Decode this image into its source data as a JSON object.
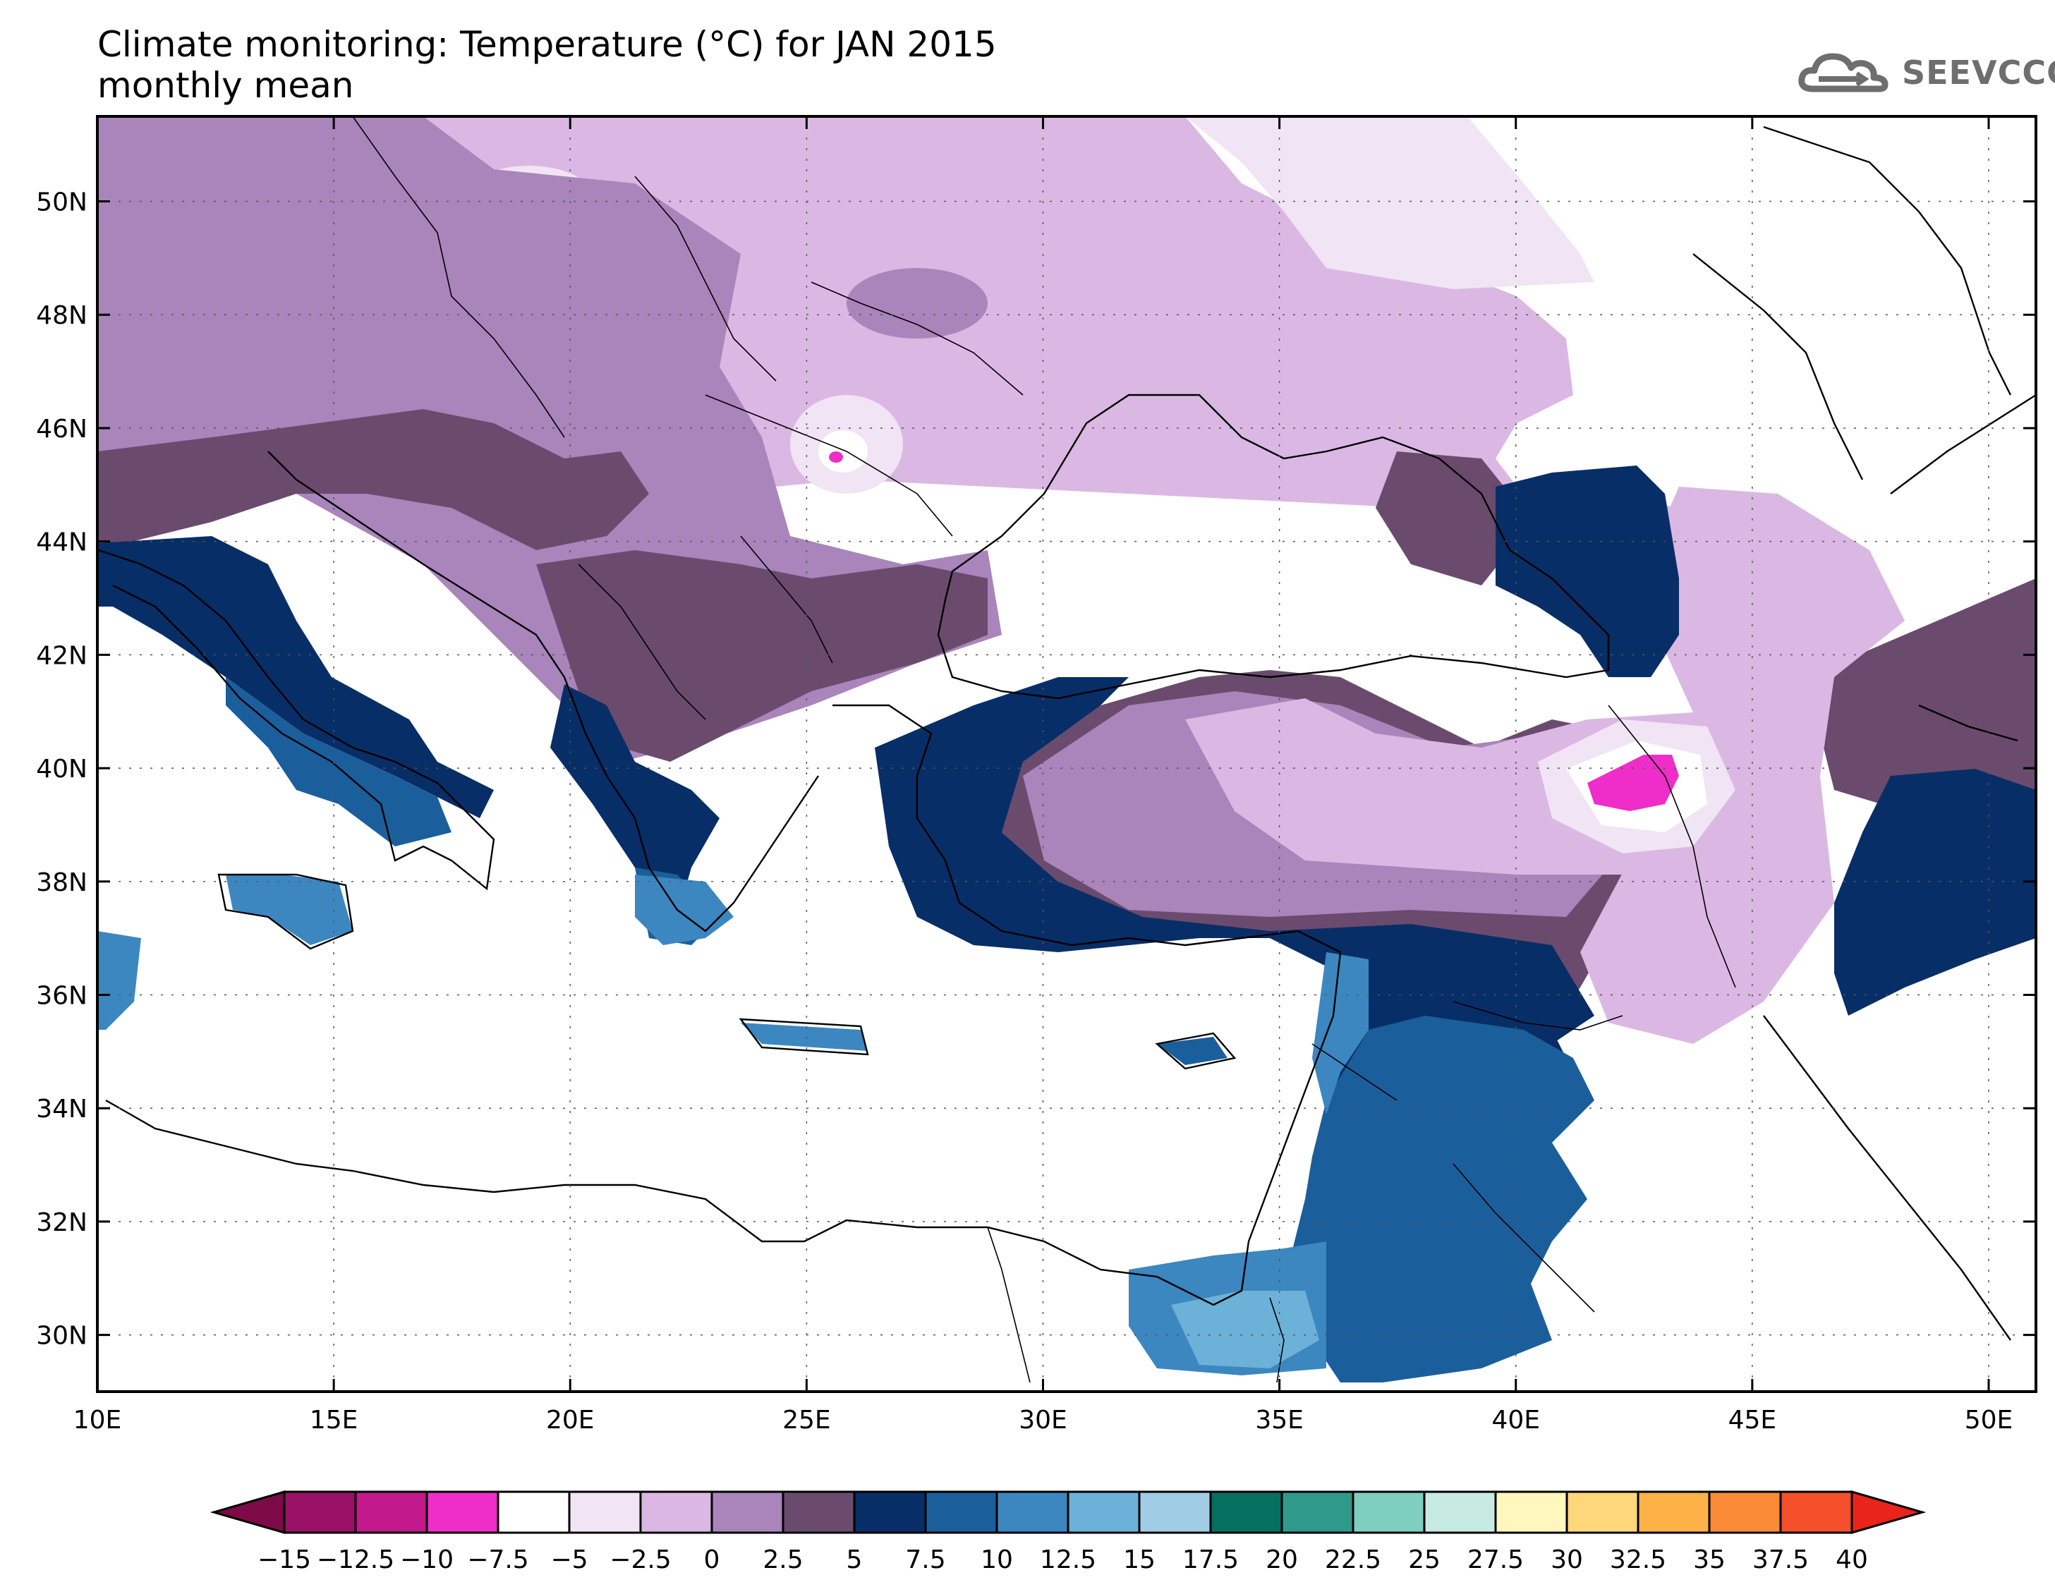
{
  "title": "Climate monitoring: Temperature (°C) for JAN 2015",
  "subtitle": "monthly mean",
  "logo_text": "SEEVCCC",
  "axes": {
    "x_ticks": [
      "10E",
      "15E",
      "20E",
      "25E",
      "30E",
      "35E",
      "40E",
      "45E",
      "50E"
    ],
    "y_ticks": [
      "50N",
      "48N",
      "46N",
      "44N",
      "42N",
      "40N",
      "38N",
      "36N",
      "34N",
      "32N",
      "30N"
    ]
  },
  "colorbar": {
    "labels": [
      "−15",
      "−12.5",
      "−10",
      "−7.5",
      "−5",
      "−2.5",
      "0",
      "2.5",
      "5",
      "7.5",
      "10",
      "12.5",
      "15",
      "17.5",
      "20",
      "22.5",
      "25",
      "27.5",
      "30",
      "32.5",
      "35",
      "37.5",
      "40"
    ],
    "under_color": "#7d0b47",
    "over_color": "#e8241b",
    "colors": [
      "#9a1168",
      "#c2198d",
      "#ef2dc8",
      "#ffffff",
      "#f1e4f4",
      "#dbb8e3",
      "#a985bb",
      "#6a4b6e",
      "#082e67",
      "#1b5e9c",
      "#3c87c0",
      "#6cb1d8",
      "#a0cde5",
      "#05705f",
      "#2f9a8b",
      "#7fcfc0",
      "#c7ebe2",
      "#fff7bd",
      "#fed77a",
      "#fdb248",
      "#fb8a37",
      "#f3502b"
    ]
  },
  "chart_data": {
    "type": "heatmap",
    "variable": "Temperature (°C)",
    "period": "JAN 2015",
    "statistic": "monthly mean",
    "lon_range": [
      10,
      51
    ],
    "lat_range": [
      29,
      51.5
    ],
    "levels": [
      -15,
      -12.5,
      -10,
      -7.5,
      -5,
      -2.5,
      0,
      2.5,
      5,
      7.5,
      10,
      12.5,
      15,
      17.5,
      20,
      22.5,
      25,
      27.5,
      30,
      32.5,
      35,
      37.5,
      40
    ]
  }
}
